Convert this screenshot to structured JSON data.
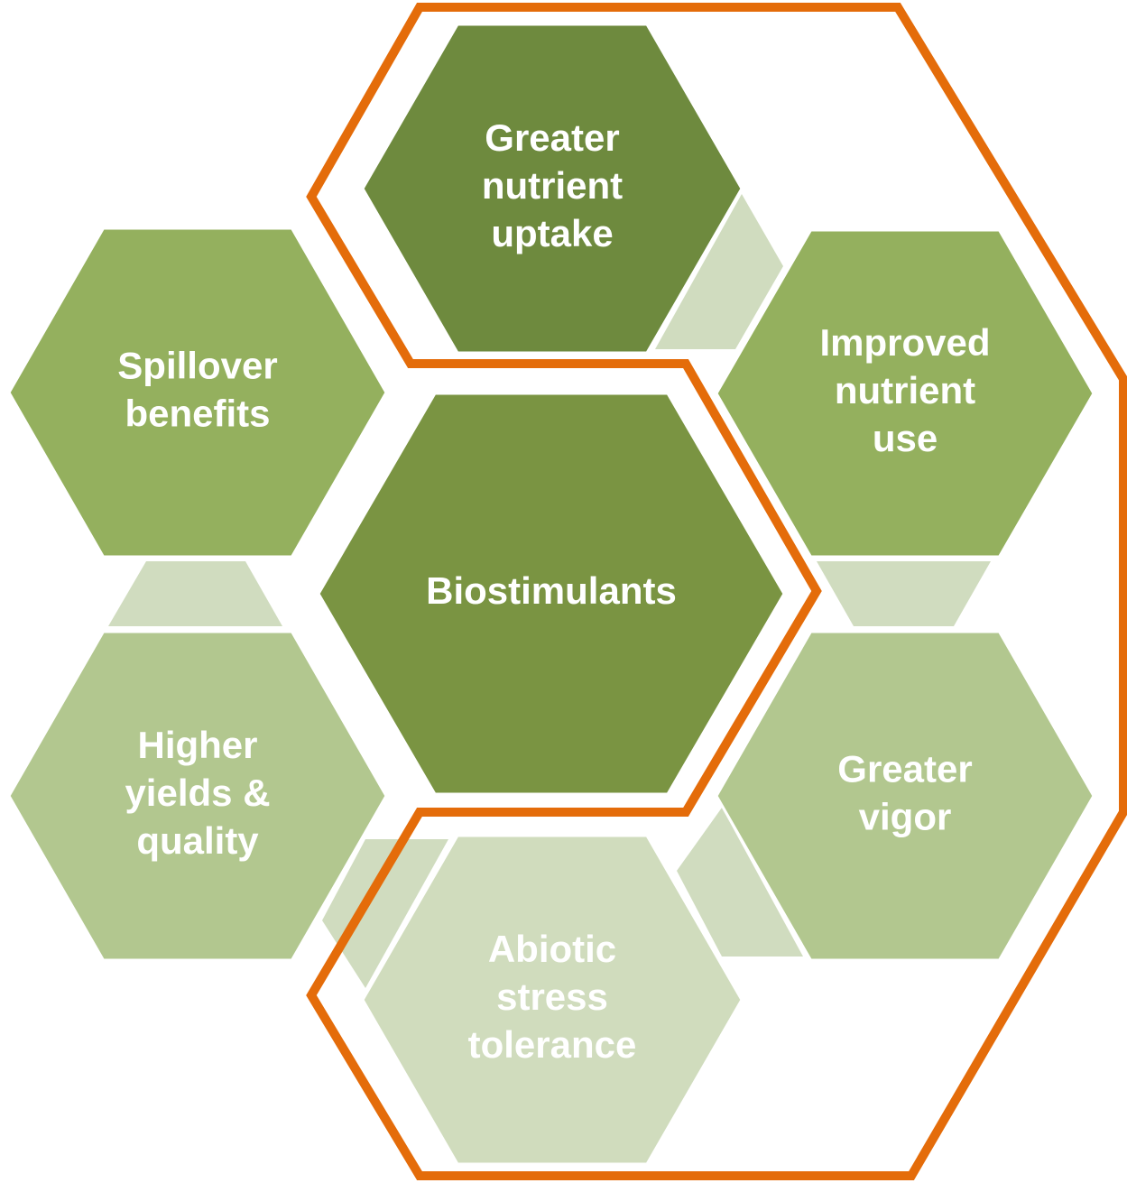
{
  "nodes": [
    {
      "lines": [
        "Greater",
        "nutrient",
        "uptake"
      ]
    },
    {
      "lines": [
        "Spillover",
        "benefits"
      ]
    },
    {
      "lines": [
        "Improved",
        "nutrient",
        "use"
      ]
    },
    {
      "lines": [
        "Biostimulants"
      ]
    },
    {
      "lines": [
        "Higher",
        "yields &",
        "quality"
      ]
    },
    {
      "lines": [
        "Greater",
        "vigor"
      ]
    },
    {
      "lines": [
        "Abiotic",
        "stress",
        "tolerance"
      ]
    }
  ]
}
